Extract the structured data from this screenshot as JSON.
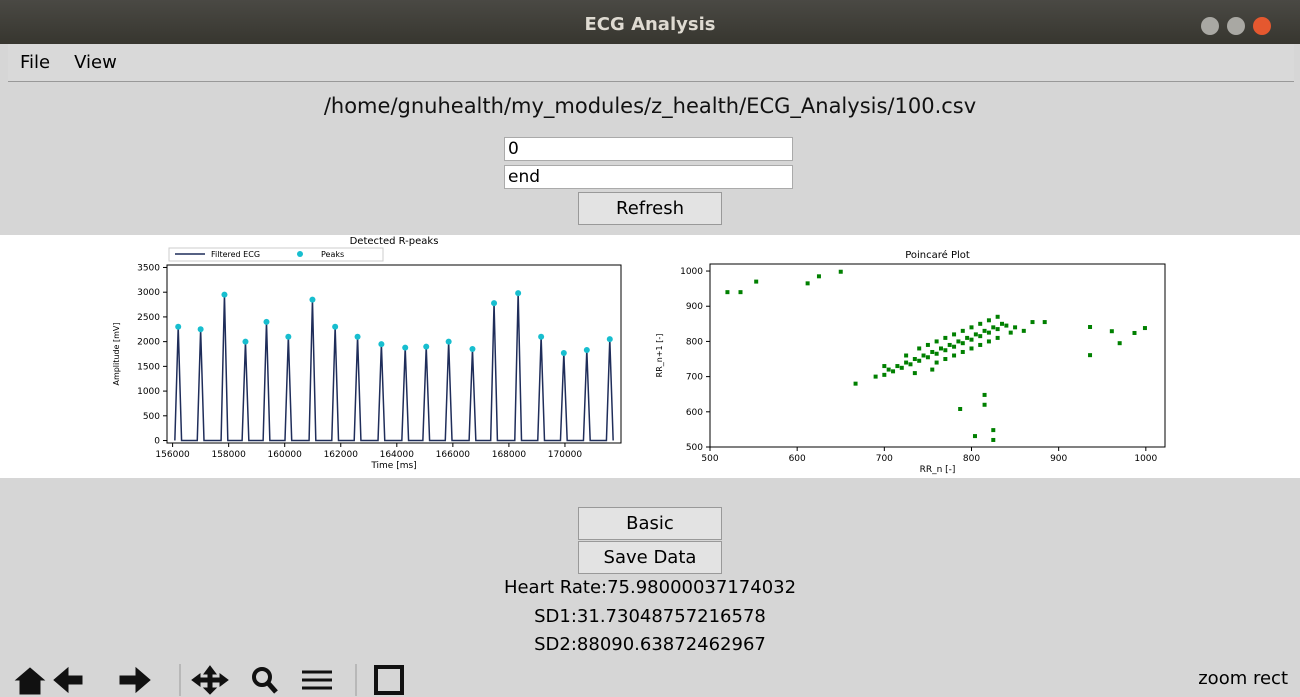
{
  "window": {
    "title": "ECG Analysis"
  },
  "menu": [
    "File",
    "View"
  ],
  "file_path": "/home/gnuhealth/my_modules/z_health/ECG_Analysis/100.csv",
  "inputs": [
    "0",
    "end"
  ],
  "buttons": {
    "refresh": "Refresh",
    "basic": "Basic",
    "save": "Save Data"
  },
  "stats": [
    "Heart Rate:75.98000037174032",
    "SD1:31.73048757216578",
    "SD2:88090.63872462967"
  ],
  "status": "zoom rect",
  "chart_data": [
    {
      "type": "line",
      "title": "Detected R-peaks",
      "xlabel": "Time [ms]",
      "ylabel": "Amplitude [mV]",
      "legend": "upper left",
      "xlim": [
        155800,
        172000
      ],
      "ylim": [
        -50,
        3550
      ],
      "xticks": [
        156000,
        158000,
        160000,
        162000,
        164000,
        166000,
        168000,
        170000
      ],
      "yticks": [
        0,
        500,
        1000,
        1500,
        2000,
        2500,
        3000,
        3500
      ],
      "series": [
        {
          "name": "Filtered ECG",
          "type": "line",
          "color": "#1f2d5a",
          "x": [
            156080,
            156200,
            156320,
            156880,
            157000,
            157120,
            157730,
            157850,
            157970,
            158480,
            158600,
            158720,
            159230,
            159350,
            159470,
            160010,
            160130,
            160250,
            160870,
            160990,
            161110,
            161680,
            161800,
            161920,
            162480,
            162600,
            162720,
            163330,
            163450,
            163570,
            164180,
            164300,
            164420,
            164930,
            165050,
            165170,
            165730,
            165850,
            165970,
            166580,
            166700,
            166820,
            167350,
            167470,
            167590,
            168210,
            168330,
            168450,
            169030,
            169150,
            169270,
            169840,
            169960,
            170080,
            170660,
            170780,
            170900,
            171480,
            171600,
            171720
          ],
          "values": [
            0,
            2300,
            0,
            0,
            2250,
            0,
            0,
            2950,
            0,
            0,
            2000,
            0,
            0,
            2400,
            0,
            0,
            2100,
            0,
            0,
            2850,
            0,
            0,
            2300,
            0,
            0,
            2100,
            0,
            0,
            1950,
            0,
            0,
            1880,
            0,
            0,
            1900,
            0,
            0,
            2000,
            0,
            0,
            1850,
            0,
            0,
            2780,
            0,
            0,
            2980,
            0,
            0,
            2100,
            0,
            0,
            1770,
            0,
            0,
            1830,
            0,
            0,
            2050,
            0
          ]
        },
        {
          "name": "Peaks",
          "type": "scatter",
          "color": "#17becf",
          "x": [
            156200,
            157000,
            157850,
            158600,
            159350,
            160130,
            160990,
            161800,
            162600,
            163450,
            164300,
            165050,
            165850,
            166700,
            167470,
            168330,
            169150,
            169960,
            170780,
            171600
          ],
          "values": [
            2300,
            2250,
            2950,
            2000,
            2400,
            2100,
            2850,
            2300,
            2100,
            1950,
            1880,
            1900,
            2000,
            1850,
            2780,
            2980,
            2100,
            1770,
            1830,
            2050
          ]
        }
      ]
    },
    {
      "type": "scatter",
      "title": "Poincaré Plot",
      "xlabel": "RR_n [-]",
      "ylabel": "RR_n+1 [-]",
      "xlim": [
        500,
        1022
      ],
      "ylim": [
        500,
        1020
      ],
      "xticks": [
        500,
        600,
        700,
        800,
        900,
        1000
      ],
      "yticks": [
        500,
        600,
        700,
        800,
        900,
        1000
      ],
      "series": [
        {
          "type": "scatter",
          "color": "#008000",
          "x": [
            520,
            535,
            553,
            612,
            625,
            650,
            667,
            787,
            804,
            815,
            825,
            825,
            815,
            936,
            936,
            961,
            970,
            987,
            999,
            884,
            690,
            700,
            705,
            710,
            715,
            720,
            725,
            730,
            735,
            740,
            745,
            750,
            755,
            760,
            765,
            770,
            775,
            780,
            785,
            790,
            795,
            800,
            805,
            810,
            815,
            820,
            825,
            830,
            835,
            840,
            845,
            850,
            760,
            770,
            780,
            790,
            800,
            810,
            820,
            830,
            750,
            760,
            770,
            780,
            790,
            800,
            810,
            820,
            830,
            725,
            740,
            700,
            860,
            870,
            755,
            735
          ],
          "values": [
            940,
            940,
            970,
            965,
            985,
            998,
            680,
            608,
            531,
            648,
            520,
            548,
            620,
            841,
            761,
            829,
            795,
            824,
            838,
            855,
            700,
            705,
            720,
            715,
            730,
            725,
            740,
            735,
            750,
            745,
            760,
            755,
            770,
            765,
            780,
            775,
            790,
            785,
            800,
            795,
            810,
            805,
            820,
            815,
            830,
            825,
            840,
            835,
            850,
            845,
            825,
            840,
            740,
            750,
            760,
            770,
            780,
            790,
            800,
            810,
            790,
            800,
            810,
            820,
            830,
            840,
            850,
            860,
            870,
            760,
            780,
            730,
            830,
            855,
            720,
            710
          ]
        }
      ]
    }
  ]
}
